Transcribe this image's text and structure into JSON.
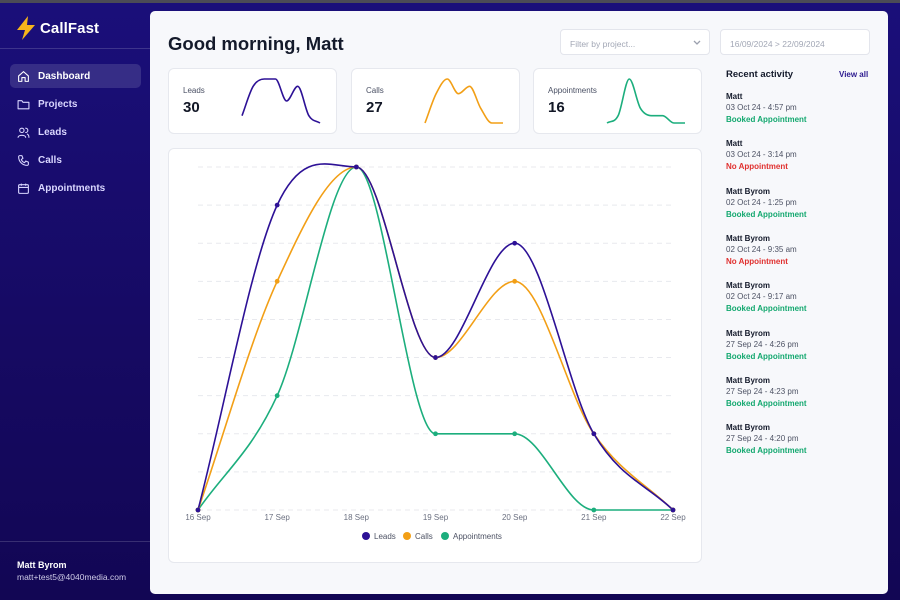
{
  "app": {
    "name": "CallFast"
  },
  "colors": {
    "leads": "#2d1196",
    "calls": "#f29f16",
    "appointments": "#1cae7d",
    "sidebar_bg": "#1a0f7a",
    "booked": "#13a86f",
    "no_appointment": "#e0302f"
  },
  "nav": [
    {
      "label": "Dashboard",
      "icon": "home-icon",
      "active": true
    },
    {
      "label": "Projects",
      "icon": "folder-icon",
      "active": false
    },
    {
      "label": "Leads",
      "icon": "users-icon",
      "active": false
    },
    {
      "label": "Calls",
      "icon": "phone-icon",
      "active": false
    },
    {
      "label": "Appointments",
      "icon": "calendar-icon",
      "active": false
    }
  ],
  "user": {
    "name": "Matt Byrom",
    "email": "matt+test5@4040media.com"
  },
  "header": {
    "greeting": "Good morning, Matt",
    "filter_placeholder": "Filter by project...",
    "date_range": "16/09/2024 > 22/09/2024"
  },
  "stats": [
    {
      "label": "Leads",
      "value": "30"
    },
    {
      "label": "Calls",
      "value": "27"
    },
    {
      "label": "Appointments",
      "value": "16"
    }
  ],
  "activity": {
    "title": "Recent activity",
    "view_all": "View all",
    "items": [
      {
        "name": "Matt",
        "time": "03 Oct 24 - 4:57 pm",
        "status": "Booked Appointment",
        "booked": true
      },
      {
        "name": "Matt",
        "time": "03 Oct 24 - 3:14 pm",
        "status": "No Appointment",
        "booked": false
      },
      {
        "name": "Matt Byrom",
        "time": "02 Oct 24 - 1:25 pm",
        "status": "Booked Appointment",
        "booked": true
      },
      {
        "name": "Matt Byrom",
        "time": "02 Oct 24 - 9:35 am",
        "status": "No Appointment",
        "booked": false
      },
      {
        "name": "Matt Byrom",
        "time": "02 Oct 24 - 9:17 am",
        "status": "Booked Appointment",
        "booked": true
      },
      {
        "name": "Matt Byrom",
        "time": "27 Sep 24 - 4:26 pm",
        "status": "Booked Appointment",
        "booked": true
      },
      {
        "name": "Matt Byrom",
        "time": "27 Sep 24 - 4:23 pm",
        "status": "Booked Appointment",
        "booked": true
      },
      {
        "name": "Matt Byrom",
        "time": "27 Sep 24 - 4:20 pm",
        "status": "Booked Appointment",
        "booked": true
      }
    ]
  },
  "chart_data": {
    "type": "line",
    "x": [
      "16 Sep",
      "17 Sep",
      "18 Sep",
      "19 Sep",
      "20 Sep",
      "21 Sep",
      "22 Sep"
    ],
    "series": [
      {
        "name": "Leads",
        "values": [
          0,
          8,
          9,
          4,
          7,
          2,
          0
        ]
      },
      {
        "name": "Calls",
        "values": [
          0,
          6,
          9,
          4,
          6,
          2,
          0
        ]
      },
      {
        "name": "Appointments",
        "values": [
          0,
          3,
          9,
          2,
          2,
          0,
          0
        ]
      }
    ],
    "ylim": [
      0,
      9
    ],
    "grid": true,
    "legend": "bottom"
  },
  "sparklines": {
    "Leads": [
      1,
      5,
      6,
      6,
      3,
      5,
      1,
      0
    ],
    "Calls": [
      0,
      4,
      6,
      4,
      5,
      2,
      0,
      0
    ],
    "Appointments": [
      0,
      1,
      6,
      2,
      1,
      1,
      0,
      0
    ]
  }
}
